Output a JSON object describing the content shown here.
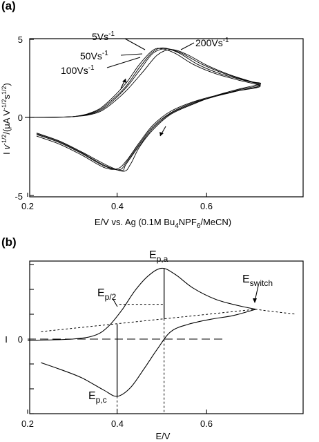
{
  "chart_data": [
    {
      "panel": "(a)",
      "type": "line",
      "xlabel_parts": [
        "E/V vs. Ag (0.1M Bu",
        "4",
        "NPF",
        "6",
        "/MeCN)"
      ],
      "ylabel_parts": [
        "I ",
        "v",
        "-1/2",
        "/(μA V",
        "-1/2",
        "s",
        "1/2",
        ")"
      ],
      "x_ticks": [
        "0.2",
        "0.4",
        "0.6"
      ],
      "y_ticks": [
        "5",
        "0",
        "-5"
      ],
      "xlim": [
        0.2,
        0.75
      ],
      "ylim": [
        -5,
        5
      ],
      "scan_rate_labels": [
        {
          "base": "5Vs",
          "exp": "-1"
        },
        {
          "base": "50Vs",
          "exp": "-1"
        },
        {
          "base": "100Vs",
          "exp": "-1"
        },
        {
          "base": "200Vs",
          "exp": "-1"
        }
      ],
      "series": [
        {
          "scan_rate": 5,
          "forward": [
            [
              0.2,
              0.0
            ],
            [
              0.3,
              0.05
            ],
            [
              0.35,
              0.4
            ],
            [
              0.38,
              1.0
            ],
            [
              0.42,
              2.2
            ],
            [
              0.45,
              3.4
            ],
            [
              0.48,
              4.3
            ],
            [
              0.5,
              4.4
            ],
            [
              0.53,
              4.1
            ],
            [
              0.57,
              3.4
            ],
            [
              0.62,
              2.8
            ],
            [
              0.67,
              2.4
            ],
            [
              0.72,
              2.0
            ]
          ],
          "reverse": [
            [
              0.72,
              2.0
            ],
            [
              0.67,
              1.7
            ],
            [
              0.62,
              1.4
            ],
            [
              0.57,
              1.0
            ],
            [
              0.52,
              0.4
            ],
            [
              0.48,
              -0.5
            ],
            [
              0.45,
              -1.6
            ],
            [
              0.42,
              -2.8
            ],
            [
              0.4,
              -3.3
            ],
            [
              0.37,
              -3.2
            ],
            [
              0.32,
              -2.4
            ],
            [
              0.27,
              -1.7
            ],
            [
              0.22,
              -1.2
            ]
          ]
        },
        {
          "scan_rate": 50,
          "forward": [
            [
              0.2,
              0.0
            ],
            [
              0.3,
              0.05
            ],
            [
              0.35,
              0.35
            ],
            [
              0.38,
              0.9
            ],
            [
              0.42,
              2.0
            ],
            [
              0.45,
              3.2
            ],
            [
              0.48,
              4.2
            ],
            [
              0.505,
              4.45
            ],
            [
              0.54,
              4.1
            ],
            [
              0.58,
              3.4
            ],
            [
              0.63,
              2.8
            ],
            [
              0.68,
              2.4
            ],
            [
              0.72,
              2.05
            ]
          ],
          "reverse": [
            [
              0.72,
              2.05
            ],
            [
              0.67,
              1.7
            ],
            [
              0.62,
              1.35
            ],
            [
              0.57,
              0.95
            ],
            [
              0.52,
              0.3
            ],
            [
              0.48,
              -0.6
            ],
            [
              0.45,
              -1.7
            ],
            [
              0.42,
              -2.9
            ],
            [
              0.405,
              -3.35
            ],
            [
              0.37,
              -3.1
            ],
            [
              0.32,
              -2.3
            ],
            [
              0.27,
              -1.6
            ],
            [
              0.22,
              -1.1
            ]
          ]
        },
        {
          "scan_rate": 100,
          "forward": [
            [
              0.2,
              0.0
            ],
            [
              0.3,
              0.05
            ],
            [
              0.35,
              0.3
            ],
            [
              0.38,
              0.8
            ],
            [
              0.42,
              1.9
            ],
            [
              0.45,
              3.0
            ],
            [
              0.48,
              4.1
            ],
            [
              0.51,
              4.4
            ],
            [
              0.545,
              4.1
            ],
            [
              0.59,
              3.4
            ],
            [
              0.64,
              2.8
            ],
            [
              0.69,
              2.35
            ],
            [
              0.72,
              2.1
            ]
          ],
          "reverse": [
            [
              0.72,
              2.1
            ],
            [
              0.67,
              1.75
            ],
            [
              0.62,
              1.35
            ],
            [
              0.57,
              0.9
            ],
            [
              0.52,
              0.25
            ],
            [
              0.48,
              -0.7
            ],
            [
              0.45,
              -1.8
            ],
            [
              0.42,
              -3.0
            ],
            [
              0.41,
              -3.4
            ],
            [
              0.37,
              -3.05
            ],
            [
              0.32,
              -2.25
            ],
            [
              0.27,
              -1.55
            ],
            [
              0.22,
              -1.05
            ]
          ]
        },
        {
          "scan_rate": 200,
          "forward": [
            [
              0.2,
              0.0
            ],
            [
              0.3,
              0.05
            ],
            [
              0.35,
              0.25
            ],
            [
              0.38,
              0.7
            ],
            [
              0.42,
              1.7
            ],
            [
              0.46,
              3.0
            ],
            [
              0.49,
              4.0
            ],
            [
              0.52,
              4.35
            ],
            [
              0.555,
              4.05
            ],
            [
              0.6,
              3.35
            ],
            [
              0.65,
              2.75
            ],
            [
              0.7,
              2.3
            ],
            [
              0.72,
              2.15
            ]
          ],
          "reverse": [
            [
              0.72,
              2.15
            ],
            [
              0.67,
              1.8
            ],
            [
              0.62,
              1.4
            ],
            [
              0.57,
              0.85
            ],
            [
              0.52,
              0.2
            ],
            [
              0.48,
              -0.8
            ],
            [
              0.45,
              -1.9
            ],
            [
              0.43,
              -3.0
            ],
            [
              0.415,
              -3.45
            ],
            [
              0.38,
              -3.1
            ],
            [
              0.32,
              -2.2
            ],
            [
              0.27,
              -1.5
            ],
            [
              0.22,
              -1.0
            ]
          ]
        }
      ]
    },
    {
      "panel": "(b)",
      "type": "line",
      "xlabel": "E/V",
      "ylabel": "I",
      "x_ticks": [
        "0.2",
        "0.4",
        "0.6"
      ],
      "y_ticks": [
        "0"
      ],
      "xlim": [
        0.2,
        0.75
      ],
      "annotations": [
        {
          "main": "E",
          "sub": "p,a"
        },
        {
          "main": "E",
          "sub": "p/2"
        },
        {
          "main": "E",
          "sub": "switch"
        },
        {
          "main": "E",
          "sub": "p,c"
        }
      ],
      "markers": {
        "E_pa": 0.505,
        "E_pc": 0.4,
        "E_p2": 0.455,
        "E_switch": 0.71
      },
      "forward": [
        [
          0.2,
          -0.05
        ],
        [
          0.3,
          0.0
        ],
        [
          0.35,
          0.15
        ],
        [
          0.38,
          0.5
        ],
        [
          0.41,
          1.15
        ],
        [
          0.44,
          1.95
        ],
        [
          0.47,
          2.55
        ],
        [
          0.5,
          2.85
        ],
        [
          0.53,
          2.6
        ],
        [
          0.57,
          2.05
        ],
        [
          0.62,
          1.6
        ],
        [
          0.67,
          1.35
        ],
        [
          0.71,
          1.2
        ]
      ],
      "reverse": [
        [
          0.71,
          1.2
        ],
        [
          0.66,
          0.95
        ],
        [
          0.61,
          0.8
        ],
        [
          0.56,
          0.6
        ],
        [
          0.52,
          0.3
        ],
        [
          0.49,
          -0.4
        ],
        [
          0.46,
          -1.2
        ],
        [
          0.43,
          -1.95
        ],
        [
          0.4,
          -2.3
        ],
        [
          0.37,
          -2.05
        ],
        [
          0.32,
          -1.55
        ],
        [
          0.27,
          -1.2
        ],
        [
          0.23,
          -0.95
        ]
      ],
      "baseline": [
        [
          0.23,
          0.3
        ],
        [
          0.71,
          1.2
        ],
        [
          0.75,
          1.12
        ]
      ],
      "zero_line": [
        [
          0.2,
          0.0
        ],
        [
          0.64,
          0.0
        ]
      ]
    }
  ]
}
